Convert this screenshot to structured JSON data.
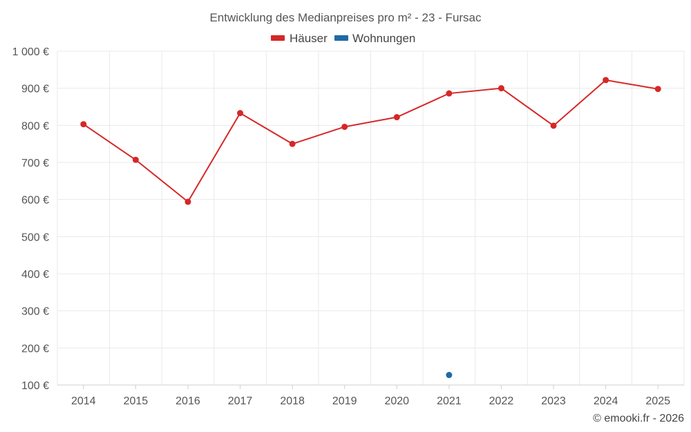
{
  "chart_data": {
    "type": "line",
    "title": "Entwicklung des Medianpreises pro m² - 23 - Fursac",
    "categories": [
      "2014",
      "2015",
      "2016",
      "2017",
      "2018",
      "2019",
      "2020",
      "2021",
      "2022",
      "2023",
      "2024",
      "2025"
    ],
    "ylim": [
      100,
      1000
    ],
    "yticks": [
      100,
      200,
      300,
      400,
      500,
      600,
      700,
      800,
      900,
      1000
    ],
    "ytick_labels": [
      "100 €",
      "200 €",
      "300 €",
      "400 €",
      "500 €",
      "600 €",
      "700 €",
      "800 €",
      "900 €",
      "1 000 €"
    ],
    "grid": true,
    "legend_position": "top-center",
    "series": [
      {
        "name": "Häuser",
        "color": "#d62728",
        "values": [
          803,
          707,
          594,
          833,
          750,
          796,
          822,
          886,
          900,
          799,
          922,
          898
        ]
      },
      {
        "name": "Wohnungen",
        "color": "#1f6aa5",
        "values": [
          null,
          null,
          null,
          null,
          null,
          null,
          null,
          127,
          null,
          null,
          null,
          null
        ]
      }
    ]
  },
  "credit": "© emooki.fr - 2026"
}
